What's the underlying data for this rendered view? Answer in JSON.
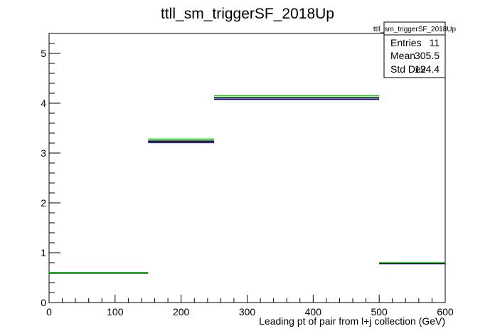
{
  "chart_data": {
    "type": "histogram",
    "title": "ttll_sm_triggerSF_2018Up",
    "xlabel": "Leading pt of pair from l+j collection (GeV)",
    "ylabel": "",
    "xlim": [
      0,
      600
    ],
    "ylim": [
      0,
      5.4
    ],
    "x_ticks": [
      "0",
      "100",
      "200",
      "300",
      "400",
      "500",
      "600"
    ],
    "y_ticks": [
      "0",
      "1",
      "2",
      "3",
      "4",
      "5"
    ],
    "grid": false,
    "legend_position": "top-right",
    "stats_box": {
      "title": "ttll_sm_triggerSF_2018Up",
      "rows": [
        {
          "label": "Entries",
          "value": "11"
        },
        {
          "label": "Mean",
          "value": "305.5"
        },
        {
          "label": "Std Dev",
          "value": "124.4"
        }
      ]
    },
    "series": [
      {
        "color": "#00007f",
        "bins": [
          {
            "x0": 0,
            "x1": 150,
            "y": 0.6
          },
          {
            "x0": 150,
            "x1": 250,
            "y": 3.21
          },
          {
            "x0": 250,
            "x1": 500,
            "y": 4.08
          },
          {
            "x0": 500,
            "x1": 600,
            "y": 0.78
          }
        ]
      },
      {
        "color": "#000000",
        "bins": [
          {
            "x0": 0,
            "x1": 150,
            "y": 0.59
          },
          {
            "x0": 150,
            "x1": 250,
            "y": 3.24
          },
          {
            "x0": 250,
            "x1": 500,
            "y": 4.11
          },
          {
            "x0": 500,
            "x1": 600,
            "y": 0.79
          }
        ]
      },
      {
        "color": "#00cc00",
        "bins": [
          {
            "x0": 0,
            "x1": 150,
            "y": 0.6
          },
          {
            "x0": 150,
            "x1": 250,
            "y": 3.28
          },
          {
            "x0": 250,
            "x1": 500,
            "y": 4.15
          },
          {
            "x0": 500,
            "x1": 600,
            "y": 0.8
          }
        ]
      }
    ]
  }
}
